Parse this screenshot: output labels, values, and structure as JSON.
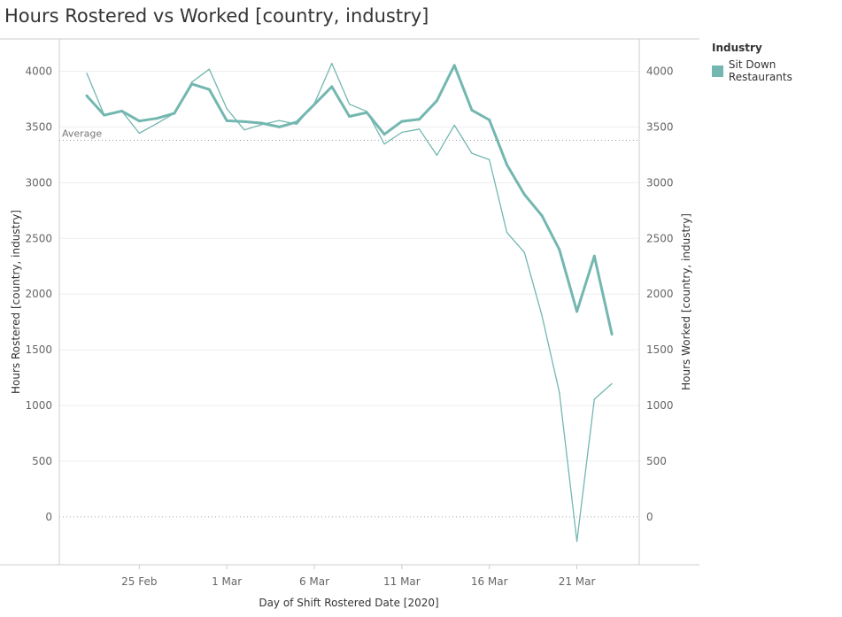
{
  "title": "Hours Rostered vs Worked [country, industry]",
  "legend": {
    "title": "Industry",
    "item": "Sit Down Restaurants",
    "color": "#73b7b0"
  },
  "chart_data": {
    "type": "line",
    "x_label": "Day of Shift Rostered Date [2020]",
    "y_label_left": "Hours Rostered [country, industry]",
    "y_label_right": "Hours Worked [country, industry]",
    "ylim": [
      -430,
      4290
    ],
    "y_ticks": [
      0,
      500,
      1000,
      1500,
      2000,
      2500,
      3000,
      3500,
      4000
    ],
    "x_ticks": [
      {
        "date": "2020-02-25",
        "label": "25 Feb"
      },
      {
        "date": "2020-03-01",
        "label": "1 Mar"
      },
      {
        "date": "2020-03-06",
        "label": "6 Mar"
      },
      {
        "date": "2020-03-11",
        "label": "11 Mar"
      },
      {
        "date": "2020-03-16",
        "label": "16 Mar"
      },
      {
        "date": "2020-03-21",
        "label": "21 Mar"
      }
    ],
    "reference_line": {
      "label": "Average",
      "value": 3380
    },
    "grid": true,
    "legend_position": "right",
    "dates": [
      "2020-02-22",
      "2020-02-23",
      "2020-02-24",
      "2020-02-25",
      "2020-02-26",
      "2020-02-27",
      "2020-02-28",
      "2020-02-29",
      "2020-03-01",
      "2020-03-02",
      "2020-03-03",
      "2020-03-04",
      "2020-03-05",
      "2020-03-06",
      "2020-03-07",
      "2020-03-08",
      "2020-03-09",
      "2020-03-10",
      "2020-03-11",
      "2020-03-12",
      "2020-03-13",
      "2020-03-14",
      "2020-03-15",
      "2020-03-16",
      "2020-03-17",
      "2020-03-18",
      "2020-03-19",
      "2020-03-20",
      "2020-03-21",
      "2020-03-22",
      "2020-03-23"
    ],
    "series": [
      {
        "name": "Hours Rostered [country, industry]",
        "width": "thick",
        "values": [
          3780,
          3606,
          3643,
          3553,
          3577,
          3622,
          3886,
          3836,
          3556,
          3548,
          3534,
          3500,
          3545,
          3701,
          3862,
          3595,
          3630,
          3434,
          3550,
          3569,
          3735,
          4053,
          3651,
          3563,
          3161,
          2894,
          2705,
          2399,
          1844,
          2341,
          1640
        ]
      },
      {
        "name": "Hours Worked [country, industry]",
        "width": "thin",
        "values": [
          3982,
          3606,
          3643,
          3444,
          3530,
          3622,
          3902,
          4018,
          3664,
          3474,
          3521,
          3558,
          3524,
          3709,
          4071,
          3704,
          3640,
          3347,
          3452,
          3481,
          3246,
          3516,
          3264,
          3206,
          2553,
          2373,
          1810,
          1116,
          -220,
          1056,
          1196
        ]
      }
    ]
  }
}
